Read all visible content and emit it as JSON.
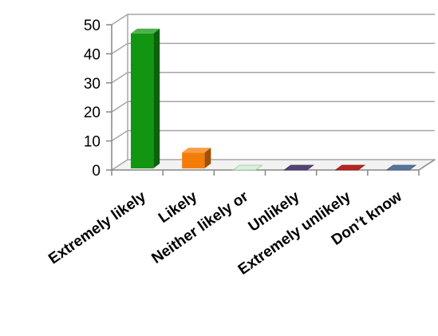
{
  "chart_data": {
    "type": "bar",
    "style": "3d-column",
    "categories": [
      "Extremely likely",
      "Likely",
      "Neither likely or",
      "Unlikely",
      "Extremely unlikely",
      "Don’t know"
    ],
    "values": [
      47,
      6,
      0,
      0,
      0,
      0
    ],
    "colors": [
      "#129612",
      "#f47d0a",
      "#d6f0d6",
      "#4c3a6e",
      "#b41a1a",
      "#4f6e96"
    ],
    "title": "",
    "xlabel": "",
    "ylabel": "",
    "ylim": [
      0,
      50
    ],
    "yticks": [
      "0",
      "10",
      "20",
      "30",
      "40",
      "50"
    ],
    "grid": true,
    "legend": "none"
  }
}
